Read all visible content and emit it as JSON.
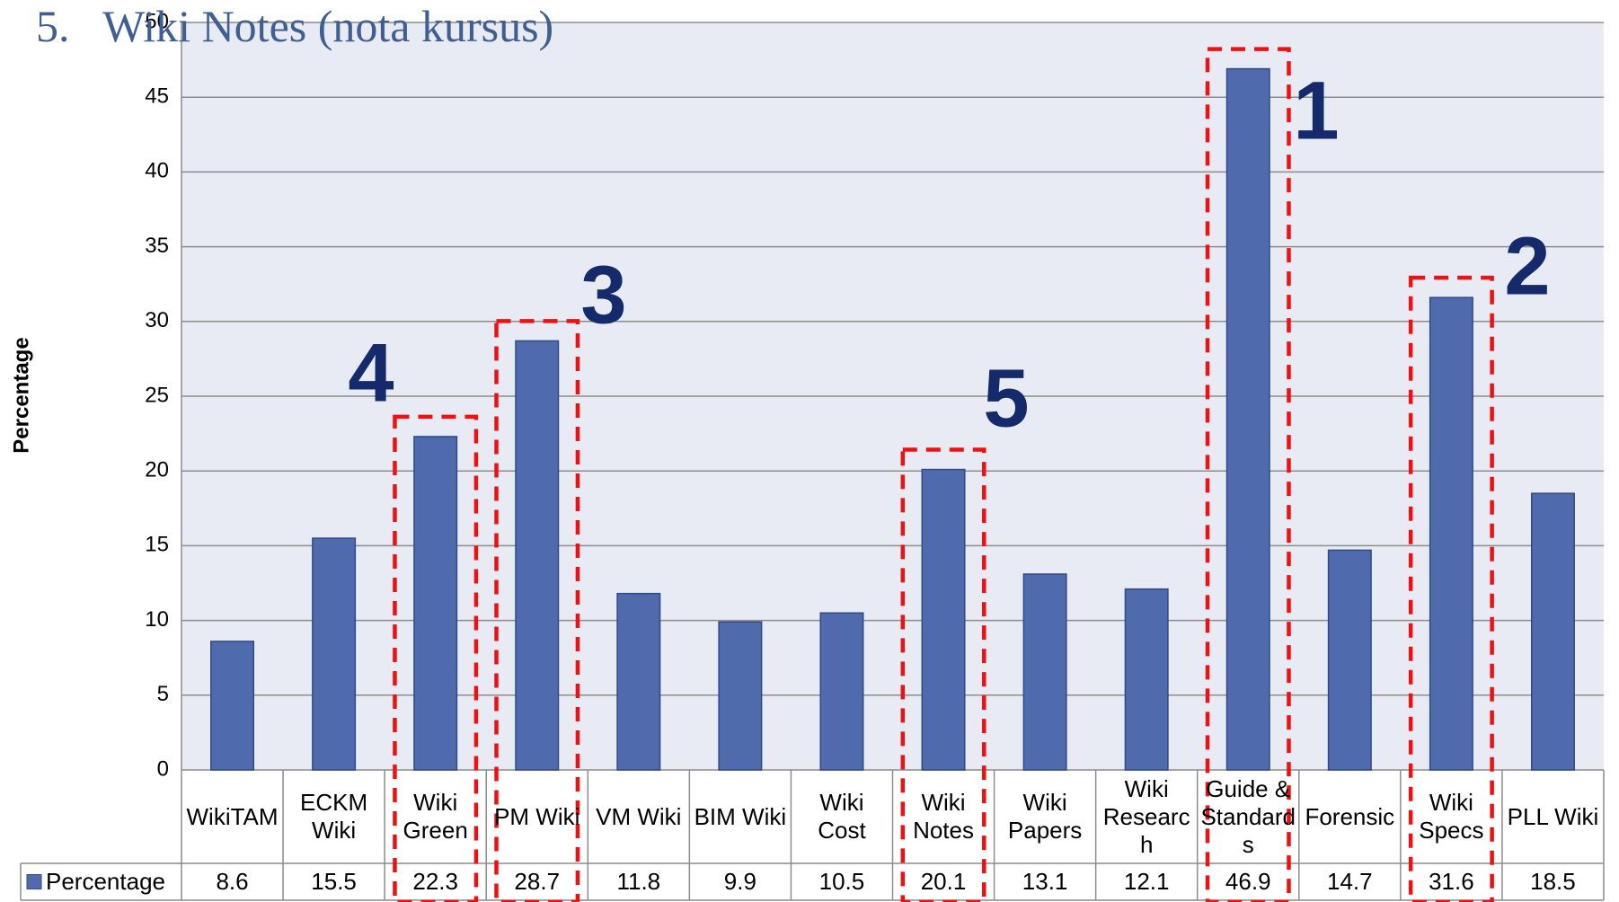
{
  "chart_data": {
    "type": "bar",
    "title": "5.   Wiki Notes (nota kursus)",
    "y_label": "Percentage",
    "categories": [
      "WikiTAM",
      "ECKM Wiki",
      "Wiki Green",
      "PM Wiki",
      "VM Wiki",
      "BIM Wiki",
      "Wiki Cost",
      "Wiki Notes",
      "Wiki Papers",
      "Wiki Research",
      "Guide & Standards",
      "Forensic",
      "Wiki Specs",
      "PLL Wiki"
    ],
    "series": [
      {
        "name": "Percentage",
        "color": "#4f6aad",
        "values": [
          8.6,
          15.5,
          22.3,
          28.7,
          11.8,
          9.9,
          10.5,
          20.1,
          13.1,
          12.1,
          46.9,
          14.7,
          31.6,
          18.5
        ]
      }
    ],
    "ylim": [
      0,
      50
    ],
    "yticks": [
      0,
      5,
      10,
      15,
      20,
      25,
      30,
      35,
      40,
      45,
      50
    ],
    "grid": true,
    "annotations": [
      "1",
      "2",
      "3",
      "4",
      "5"
    ]
  }
}
